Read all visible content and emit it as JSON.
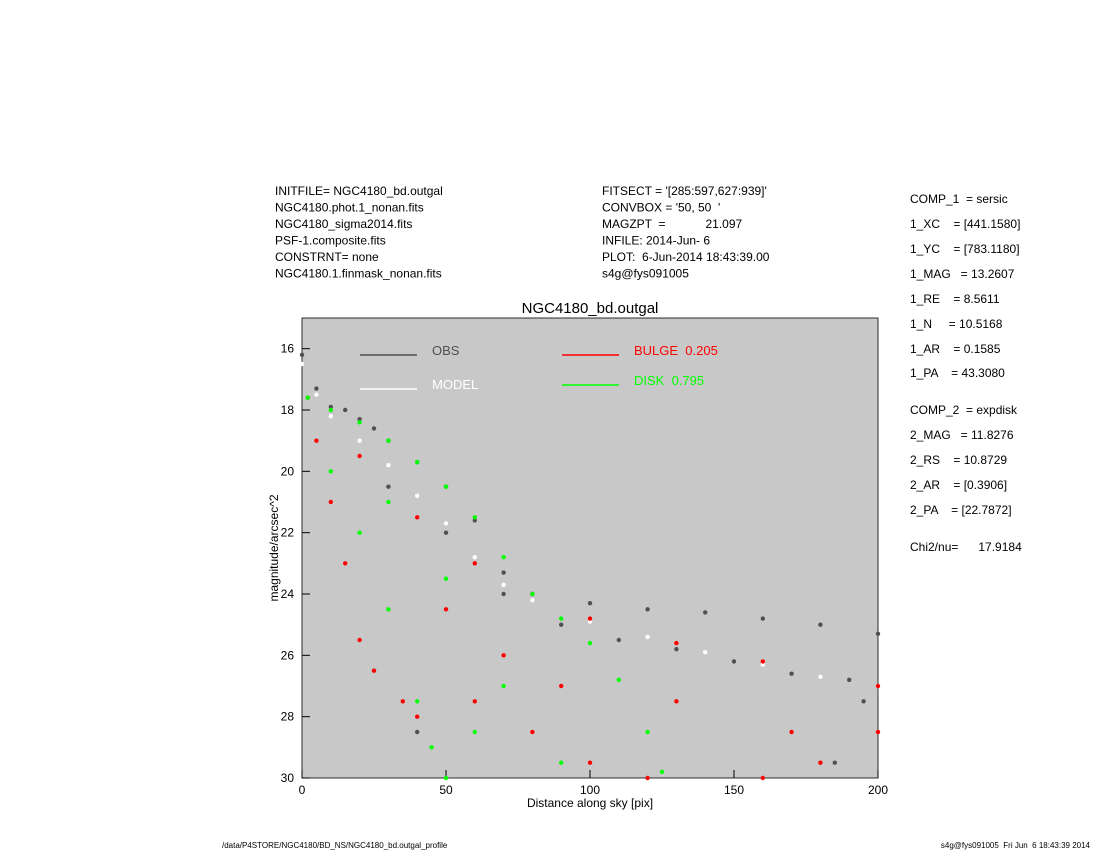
{
  "header": {
    "left": [
      "INITFILE= NGC4180_bd.outgal",
      "NGC4180.phot.1_nonan.fits",
      "NGC4180_sigma2014.fits",
      "PSF-1.composite.fits",
      "CONSTRNT= none",
      "NGC4180.1.finmask_nonan.fits"
    ],
    "middle": [
      "FITSECT = '[285:597,627:939]'",
      "CONVBOX = '50, 50  '",
      "MAGZPT  =            21.097",
      "INFILE: 2014-Jun- 6",
      "PLOT:  6-Jun-2014 18:43:39.00",
      "s4g@fys091005"
    ]
  },
  "params": [
    "COMP_1  = sersic",
    "1_XC    = [441.1580]",
    "1_YC    = [783.1180]",
    "1_MAG   = 13.2607",
    "1_RE    = 8.5611",
    "1_N     = 10.5168",
    "1_AR    = 0.1585",
    "1_PA    = 43.3080",
    "COMP_2  = expdisk",
    "2_MAG   = 11.8276",
    "2_RS    = 10.8729",
    "2_AR    = [0.3906]",
    "2_PA    = [22.7872]",
    "Chi2/nu=      17.9184"
  ],
  "footer": {
    "left": "/data/P4STORE/NGC4180/BD_NS/NGC4180_bd.outgal_profile",
    "right": "s4g@fys091005  Fri Jun  6 18:43:39 2014"
  },
  "chart_data": {
    "type": "scatter",
    "title": "NGC4180_bd.outgal",
    "x_label": "Distance along sky [pix]",
    "y_label": "magnitude/arcsec^2",
    "xlim": [
      0,
      200
    ],
    "xticks": [
      0,
      50,
      100,
      150,
      200
    ],
    "ylim": [
      30,
      15
    ],
    "yticks": [
      16,
      18,
      20,
      22,
      24,
      26,
      28,
      30
    ],
    "series": [
      {
        "name": "OBS",
        "color": "#505050",
        "x": [
          0,
          5,
          10,
          15,
          20,
          25,
          30,
          40,
          50,
          60,
          70,
          80,
          100,
          120,
          140,
          160,
          180,
          200,
          30,
          50,
          70,
          90,
          110,
          130,
          150,
          170,
          190,
          195,
          185,
          40
        ],
        "values": [
          16.2,
          17.3,
          17.9,
          18.0,
          18.3,
          18.6,
          19.0,
          19.7,
          20.5,
          21.6,
          23.3,
          24.0,
          24.3,
          24.5,
          24.6,
          24.8,
          25.0,
          25.3,
          20.5,
          22.0,
          24.0,
          25.0,
          25.5,
          25.8,
          26.2,
          26.6,
          26.8,
          27.5,
          29.5,
          28.5
        ]
      },
      {
        "name": "MODEL",
        "color": "#ffffff",
        "x": [
          0,
          5,
          10,
          20,
          30,
          40,
          50,
          60,
          70,
          80,
          100,
          120,
          140,
          160,
          180,
          200
        ],
        "values": [
          16.5,
          17.5,
          18.2,
          19.0,
          19.8,
          20.8,
          21.7,
          22.8,
          23.7,
          24.2,
          24.9,
          25.4,
          25.9,
          26.3,
          26.7,
          27.0
        ]
      },
      {
        "name": "BULGE  0.205",
        "color": "#ff0000",
        "x": [
          2,
          5,
          10,
          15,
          20,
          25,
          35,
          40,
          20,
          40,
          60,
          80,
          100,
          130,
          160,
          200,
          200,
          180,
          160,
          120,
          100,
          80,
          60,
          90,
          130,
          170,
          50,
          70
        ],
        "values": [
          17.6,
          19.0,
          21.0,
          23.0,
          25.5,
          26.5,
          27.5,
          28.0,
          19.5,
          21.5,
          23.0,
          24.0,
          24.8,
          25.6,
          26.2,
          27.0,
          28.5,
          29.5,
          30.0,
          30.0,
          29.5,
          28.5,
          27.5,
          27.0,
          27.5,
          28.5,
          24.5,
          26.0
        ]
      },
      {
        "name": "DISK  0.795",
        "color": "#00ff00",
        "x": [
          2,
          10,
          20,
          30,
          40,
          50,
          60,
          70,
          80,
          90,
          100,
          110,
          120,
          125,
          10,
          20,
          30,
          40,
          45,
          50,
          30,
          50,
          70,
          90,
          60
        ],
        "values": [
          17.6,
          18.0,
          18.4,
          19.0,
          19.7,
          20.5,
          21.5,
          22.8,
          24.0,
          24.8,
          25.6,
          26.8,
          28.5,
          29.8,
          20.0,
          22.0,
          24.5,
          27.5,
          29.0,
          30.0,
          21.0,
          23.5,
          27.0,
          29.5,
          28.5
        ]
      }
    ]
  }
}
